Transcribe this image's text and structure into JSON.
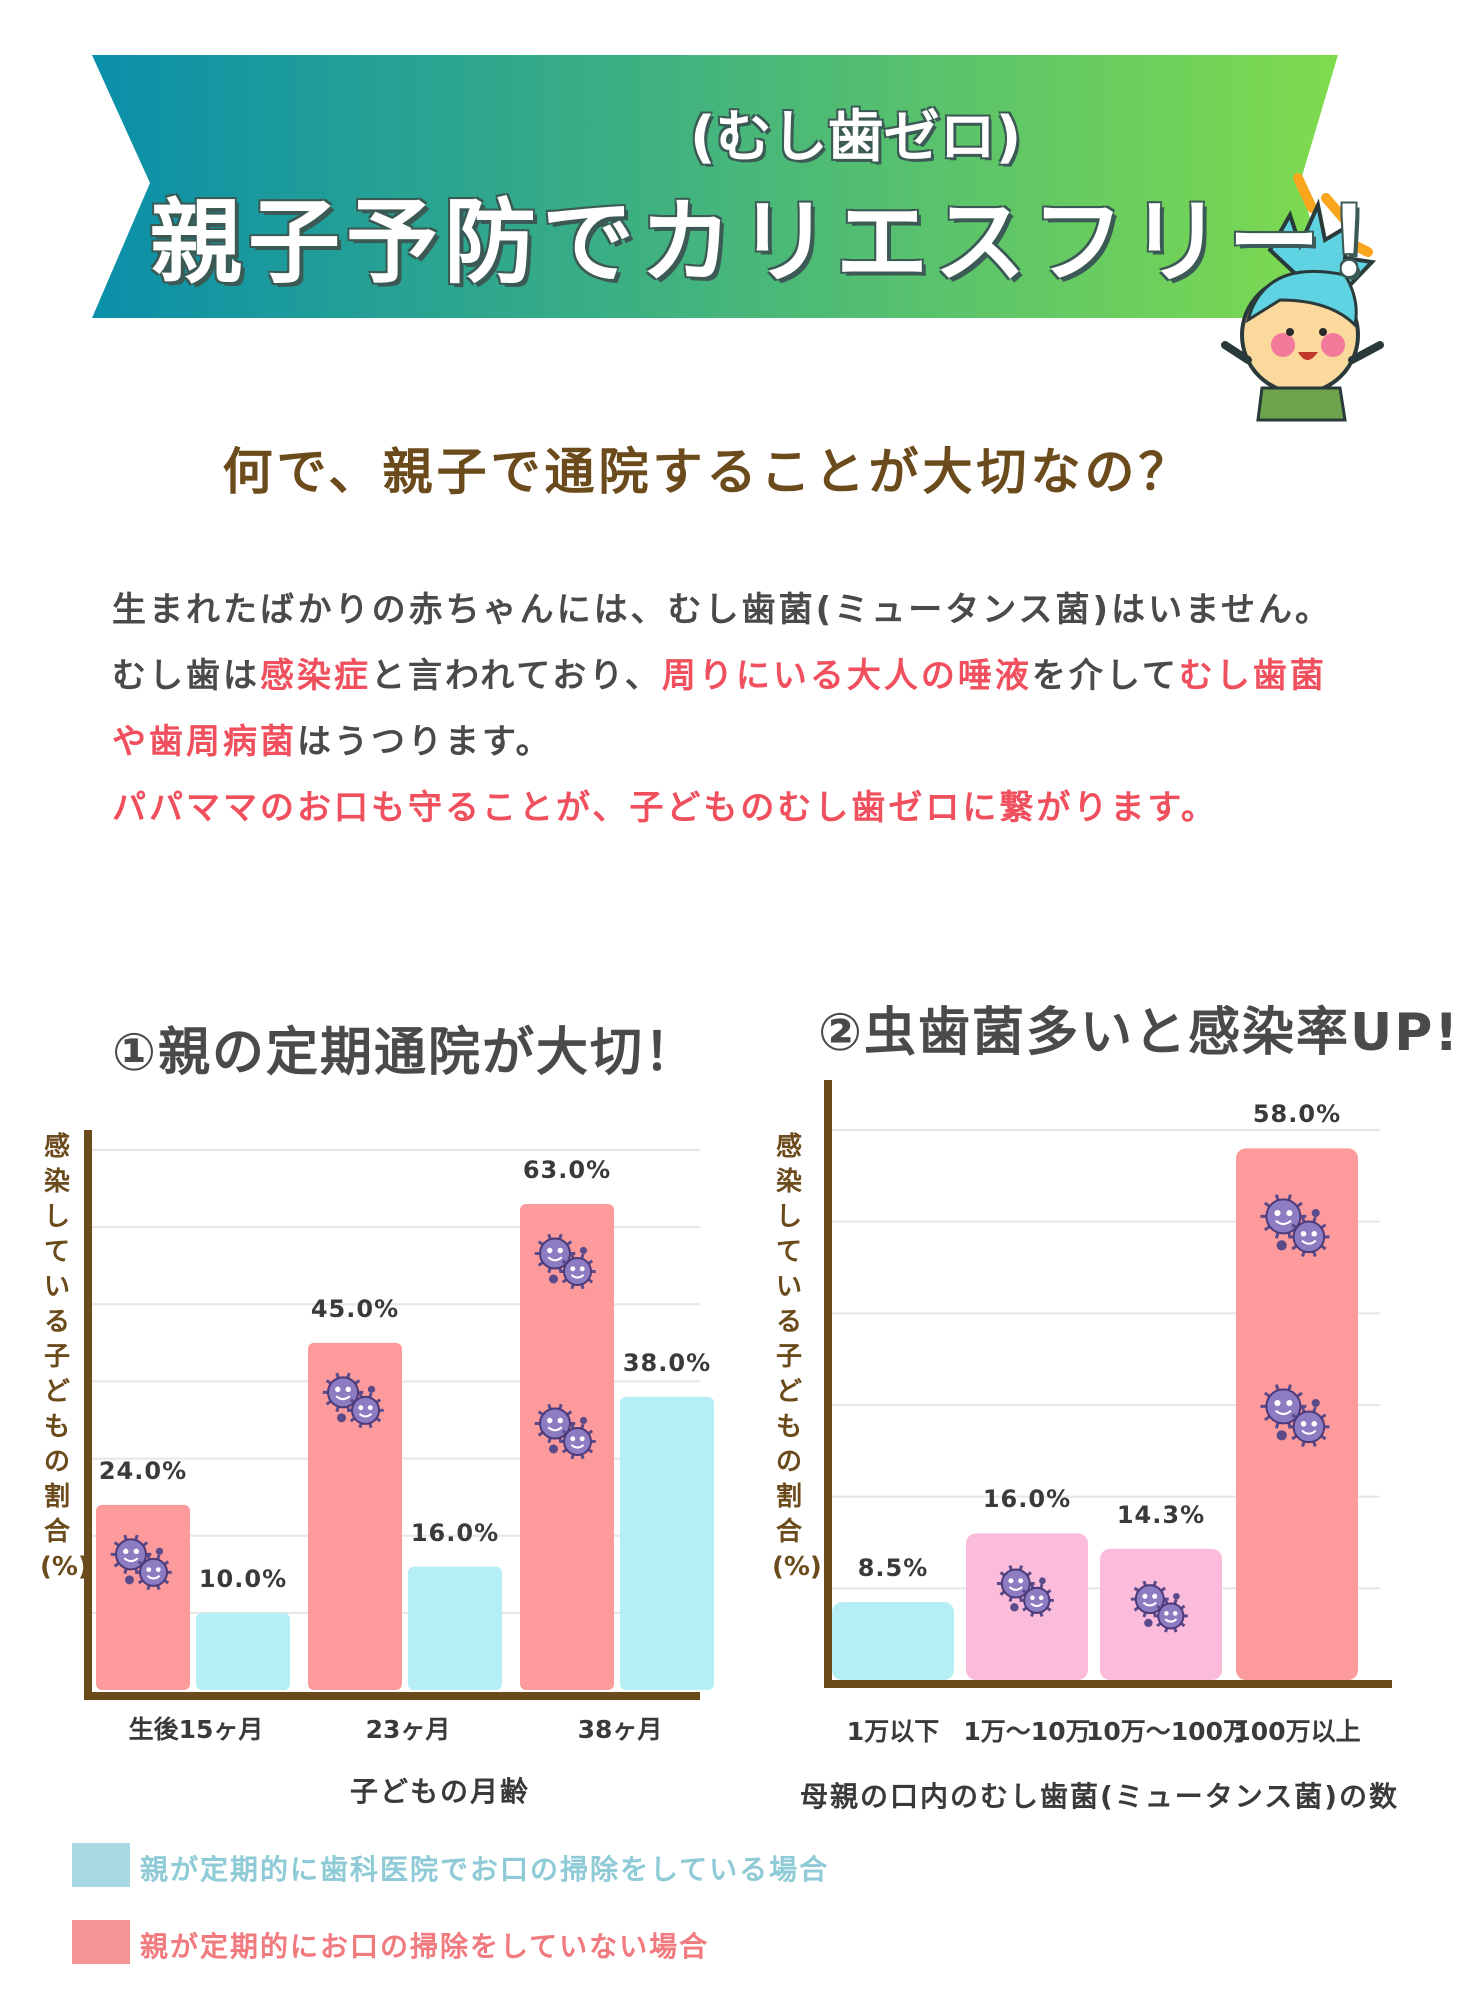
{
  "colors": {
    "banner_left": "#0a8faa",
    "banner_right": "#7fdb4e",
    "title_brown": "#6b4a1b",
    "accent_red": "#f0505e",
    "bar_pink_red": "#fd9a9b",
    "bar_light_blue": "#b6eef5",
    "bar_light_pink": "#fbbcdc",
    "axis_brown": "#6b4a1b",
    "legend_blue": "#a8d8e2",
    "legend_red": "#f49496"
  },
  "banner": {
    "subtitle": "(むし歯ゼロ)",
    "title": "親子予防でカリエスフリー！"
  },
  "question": "何で、親子で通院することが大切なの？",
  "paragraph": {
    "line1": "生まれたばかりの赤ちゃんには、むし歯菌(ミュータンス菌)はいません。",
    "line2_a": "むし歯は",
    "line2_b": "感染症",
    "line2_c": "と言われており、",
    "line2_d": "周りにいる大人の唾液",
    "line2_e": "を介して",
    "line2_f": "むし歯菌",
    "line3_a": "や歯周病菌",
    "line3_b": "はうつります。",
    "line4": "パパママのお口も守ることが、子どものむし歯ゼロに繋がります。"
  },
  "icons": [
    "germ-icon",
    "mascot-character-icon",
    "sparkle-icon"
  ],
  "chart_data": [
    {
      "type": "bar",
      "title": "①親の定期通院が大切！",
      "xlabel": "子どもの月齢",
      "ylabel": "感染している子どもの割合(%)",
      "categories": [
        "生後15ヶ月",
        "23ヶ月",
        "38ヶ月"
      ],
      "ylim": [
        0,
        70
      ],
      "grid": true,
      "series": [
        {
          "name": "親が定期的にお口の掃除をしていない場合",
          "values": [
            24.0,
            45.0,
            63.0
          ],
          "labels": [
            "24.0%",
            "45.0%",
            "63.0%"
          ]
        },
        {
          "name": "親が定期的に歯科医院でお口の掃除をしている場合",
          "values": [
            10.0,
            16.0,
            38.0
          ],
          "labels": [
            "10.0%",
            "16.0%",
            "38.0%"
          ]
        }
      ],
      "legend": "bottom"
    },
    {
      "type": "bar",
      "title": "②虫歯菌多いと感染率UP!",
      "xlabel": "母親の口内のむし歯菌(ミュータンス菌)の数",
      "ylabel": "感染している子どもの割合(%)",
      "categories": [
        "1万以下",
        "1万～10万",
        "10万～100万",
        "100万以上"
      ],
      "values": [
        8.5,
        16.0,
        14.3,
        58.0
      ],
      "labels": [
        "8.5%",
        "16.0%",
        "14.3%",
        "58.0%"
      ],
      "ylim": [
        0,
        60
      ],
      "grid": true
    }
  ]
}
